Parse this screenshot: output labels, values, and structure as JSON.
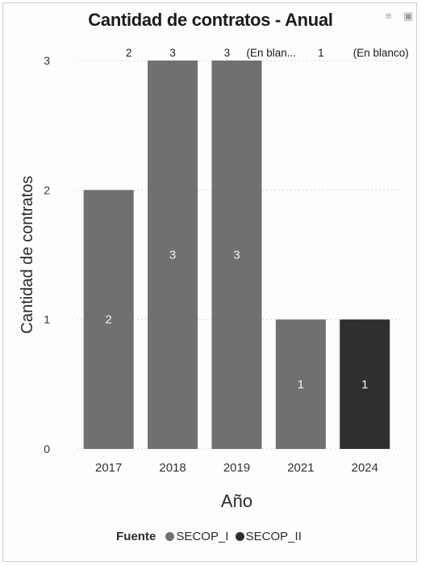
{
  "chart_data": {
    "type": "bar",
    "title": "Cantidad de contratos - Anual",
    "xlabel": "Año",
    "ylabel": "Cantidad de contratos",
    "categories": [
      "2017",
      "2018",
      "2019",
      "2021",
      "2024"
    ],
    "values": [
      2,
      3,
      3,
      1,
      1
    ],
    "bar_series": [
      "SECOP_I",
      "SECOP_I",
      "SECOP_I",
      "SECOP_I",
      "SECOP_II"
    ],
    "ylim": [
      0,
      3
    ],
    "yticks": [
      0,
      1,
      2,
      3
    ],
    "top_labels": [
      {
        "x": "2017",
        "text": "2"
      },
      {
        "x": "2018",
        "text": "3"
      },
      {
        "x": "2019",
        "text": "3"
      },
      {
        "x": "2019",
        "text": "(En blan..."
      },
      {
        "x": "2021",
        "text": "1"
      },
      {
        "x": "2024",
        "text": "(En blanco)"
      }
    ],
    "legend": {
      "title": "Fuente",
      "entries": [
        {
          "name": "SECOP_I",
          "color": "#707070"
        },
        {
          "name": "SECOP_II",
          "color": "#2f2f2f"
        }
      ],
      "placement": "bottom"
    },
    "grid": true
  },
  "colors": {
    "SECOP_I": "#707070",
    "SECOP_II": "#2f2f2f",
    "grid": "#d8d8d8",
    "text": "#333333"
  },
  "icons": {
    "filter": "filter-icon",
    "focus": "focus-mode-icon"
  }
}
